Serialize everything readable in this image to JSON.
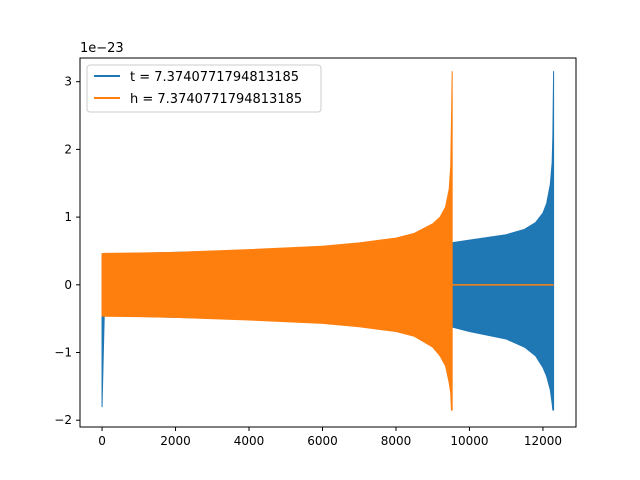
{
  "chart_data": {
    "type": "line",
    "title": "",
    "xlabel": "",
    "ylabel": "",
    "y_offset_label": "1e−23",
    "xlim": [
      -600,
      12900
    ],
    "ylim": [
      -2.1,
      3.35
    ],
    "x_ticks": [
      0,
      2000,
      4000,
      6000,
      8000,
      10000,
      12000
    ],
    "x_tick_labels": [
      "0",
      "2000",
      "4000",
      "6000",
      "8000",
      "10000",
      "12000"
    ],
    "y_ticks": [
      -2,
      -1,
      0,
      1,
      2,
      3
    ],
    "y_tick_labels": [
      "−2",
      "−1",
      "0",
      "1",
      "2",
      "3"
    ],
    "legend_position": "upper-left",
    "grid": false,
    "series": [
      {
        "name": "t = 7.3740771794813185",
        "color": "#1f77b4",
        "envelope": {
          "x": [
            0,
            60,
            200,
            2000,
            4000,
            6000,
            8000,
            9000,
            9500,
            10000,
            11000,
            11500,
            11800,
            12000,
            12100,
            12200,
            12250,
            12270,
            12290
          ],
          "upper": [
            0.43,
            0.45,
            0.455,
            0.48,
            0.51,
            0.54,
            0.57,
            0.59,
            0.62,
            0.66,
            0.74,
            0.82,
            0.92,
            1.06,
            1.2,
            1.48,
            1.8,
            2.2,
            3.15
          ],
          "lower": [
            -1.8,
            -0.45,
            -0.455,
            -0.48,
            -0.51,
            -0.54,
            -0.57,
            -0.59,
            -0.62,
            -0.69,
            -0.8,
            -0.92,
            -1.05,
            -1.22,
            -1.35,
            -1.55,
            -1.75,
            -1.85,
            -1.85
          ]
        }
      },
      {
        "name": "h = 7.3740771794813185",
        "color": "#ff7f0e",
        "envelope": {
          "x": [
            0,
            60,
            1000,
            2000,
            4000,
            6000,
            7000,
            8000,
            8500,
            9000,
            9200,
            9350,
            9450,
            9490,
            9510,
            9530
          ],
          "upper": [
            0.46,
            0.465,
            0.47,
            0.48,
            0.52,
            0.57,
            0.62,
            0.69,
            0.76,
            0.9,
            1.0,
            1.15,
            1.42,
            1.75,
            2.4,
            3.15
          ],
          "lower": [
            -0.46,
            -0.465,
            -0.47,
            -0.48,
            -0.52,
            -0.57,
            -0.62,
            -0.69,
            -0.76,
            -0.92,
            -1.05,
            -1.2,
            -1.45,
            -1.6,
            -1.85,
            -1.85
          ]
        },
        "tail": {
          "x": [
            9530,
            12290
          ],
          "y": [
            0,
            0
          ]
        }
      }
    ]
  }
}
